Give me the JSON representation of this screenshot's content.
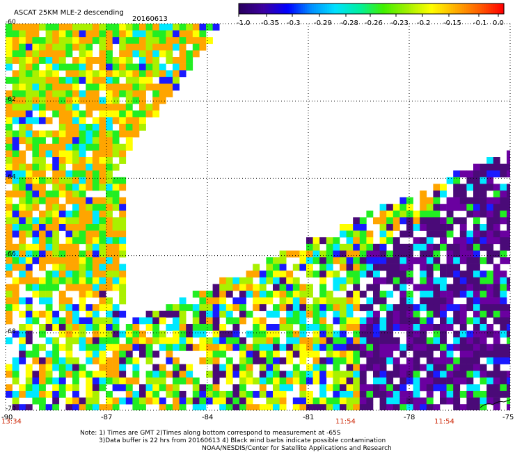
{
  "title": "ASCAT 25KM MLE-2 descending",
  "date": "20160613",
  "colorbar": {
    "labels": [
      "-1.0",
      "-0.35",
      "-0.3",
      "-0.29",
      "-0.28",
      "-0.26",
      "-0.23",
      "-0.2",
      "-0.15",
      "-0.1",
      "0.0"
    ],
    "colors": [
      "#2a0060",
      "#3c00a0",
      "#0000ff",
      "#0090ff",
      "#00e0ff",
      "#00f0a0",
      "#40f000",
      "#a0f000",
      "#ffff00",
      "#ffb000",
      "#ff6000",
      "#ff0000"
    ]
  },
  "axes": {
    "lat_labels": [
      "-60",
      "-62",
      "-64",
      "-66",
      "-68",
      "-70"
    ],
    "lon_labels": [
      "-90",
      "-87",
      "-84",
      "-81",
      "-78",
      "-75"
    ],
    "time_labels": [
      "13:34",
      "11:54",
      "11:54"
    ]
  },
  "notes": {
    "line1": "Note: 1) Times are GMT 2)Times along bottom correspond to measurement at -65S",
    "line2": "3)Data buffer is 22 hrs from 20160613 4) Black wind barbs indicate possible contamination",
    "line3": "NOAA/NESDIS/Center for Satellite Applications and Research"
  },
  "palette": {
    "dark_purple": "#4a0a78",
    "purple": "#6a00a0",
    "blue": "#1a1aff",
    "cyan": "#00e8ff",
    "green": "#22ee22",
    "yellow_green": "#aaf000",
    "yellow": "#ffff00",
    "orange": "#ffa500"
  }
}
